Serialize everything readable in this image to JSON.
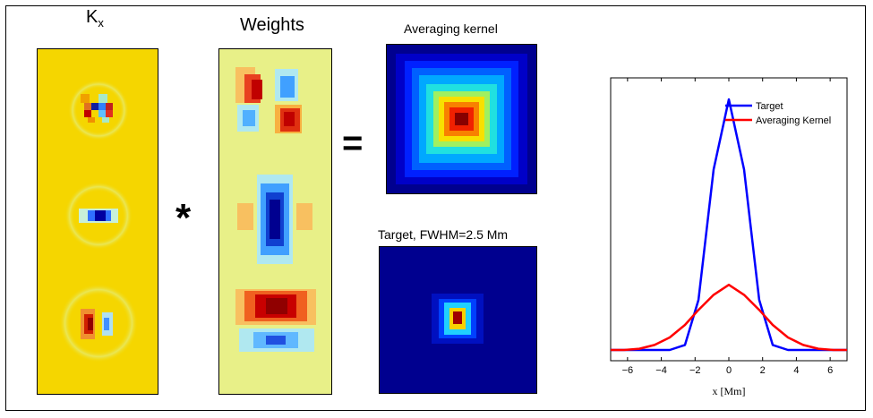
{
  "labels": {
    "kx_main": "K",
    "kx_sub": "x",
    "weights": "Weights",
    "avg_kernel": "Averaging kernel",
    "target": "Target, FWHM=2.5 Mm",
    "convolve": "*",
    "equals": "="
  },
  "colors": {
    "background_yellow": "#f5d600",
    "deep_blue": "#00008f",
    "target_line": "#0000ff",
    "avg_line": "#ff0000"
  },
  "chart_data": {
    "type": "line",
    "xlabel": "x [Mm]",
    "xlim": [
      -7,
      7
    ],
    "ylim": [
      0,
      1.05
    ],
    "xticks": [
      -6,
      -4,
      -2,
      0,
      2,
      4,
      6
    ],
    "legend_position": "top-right",
    "series": [
      {
        "name": "Target",
        "color": "#0000ff",
        "x": [
          -7,
          -6.2,
          -5.3,
          -4.4,
          -3.5,
          -2.6,
          -1.8,
          -0.9,
          0,
          0.9,
          1.8,
          2.6,
          3.5,
          4.4,
          5.3,
          6.2,
          7
        ],
        "y": [
          0,
          0,
          0,
          0,
          0,
          0.02,
          0.2,
          0.72,
          1.0,
          0.72,
          0.2,
          0.02,
          0,
          0,
          0,
          0,
          0
        ]
      },
      {
        "name": "Averaging Kernel",
        "color": "#ff0000",
        "x": [
          -7,
          -6.2,
          -5.3,
          -4.4,
          -3.5,
          -2.6,
          -1.8,
          -0.9,
          0,
          0.9,
          1.8,
          2.6,
          3.5,
          4.4,
          5.3,
          6.2,
          7
        ],
        "y": [
          0,
          0,
          0.005,
          0.02,
          0.05,
          0.1,
          0.16,
          0.22,
          0.26,
          0.22,
          0.16,
          0.1,
          0.05,
          0.02,
          0.005,
          0,
          0
        ]
      }
    ]
  }
}
